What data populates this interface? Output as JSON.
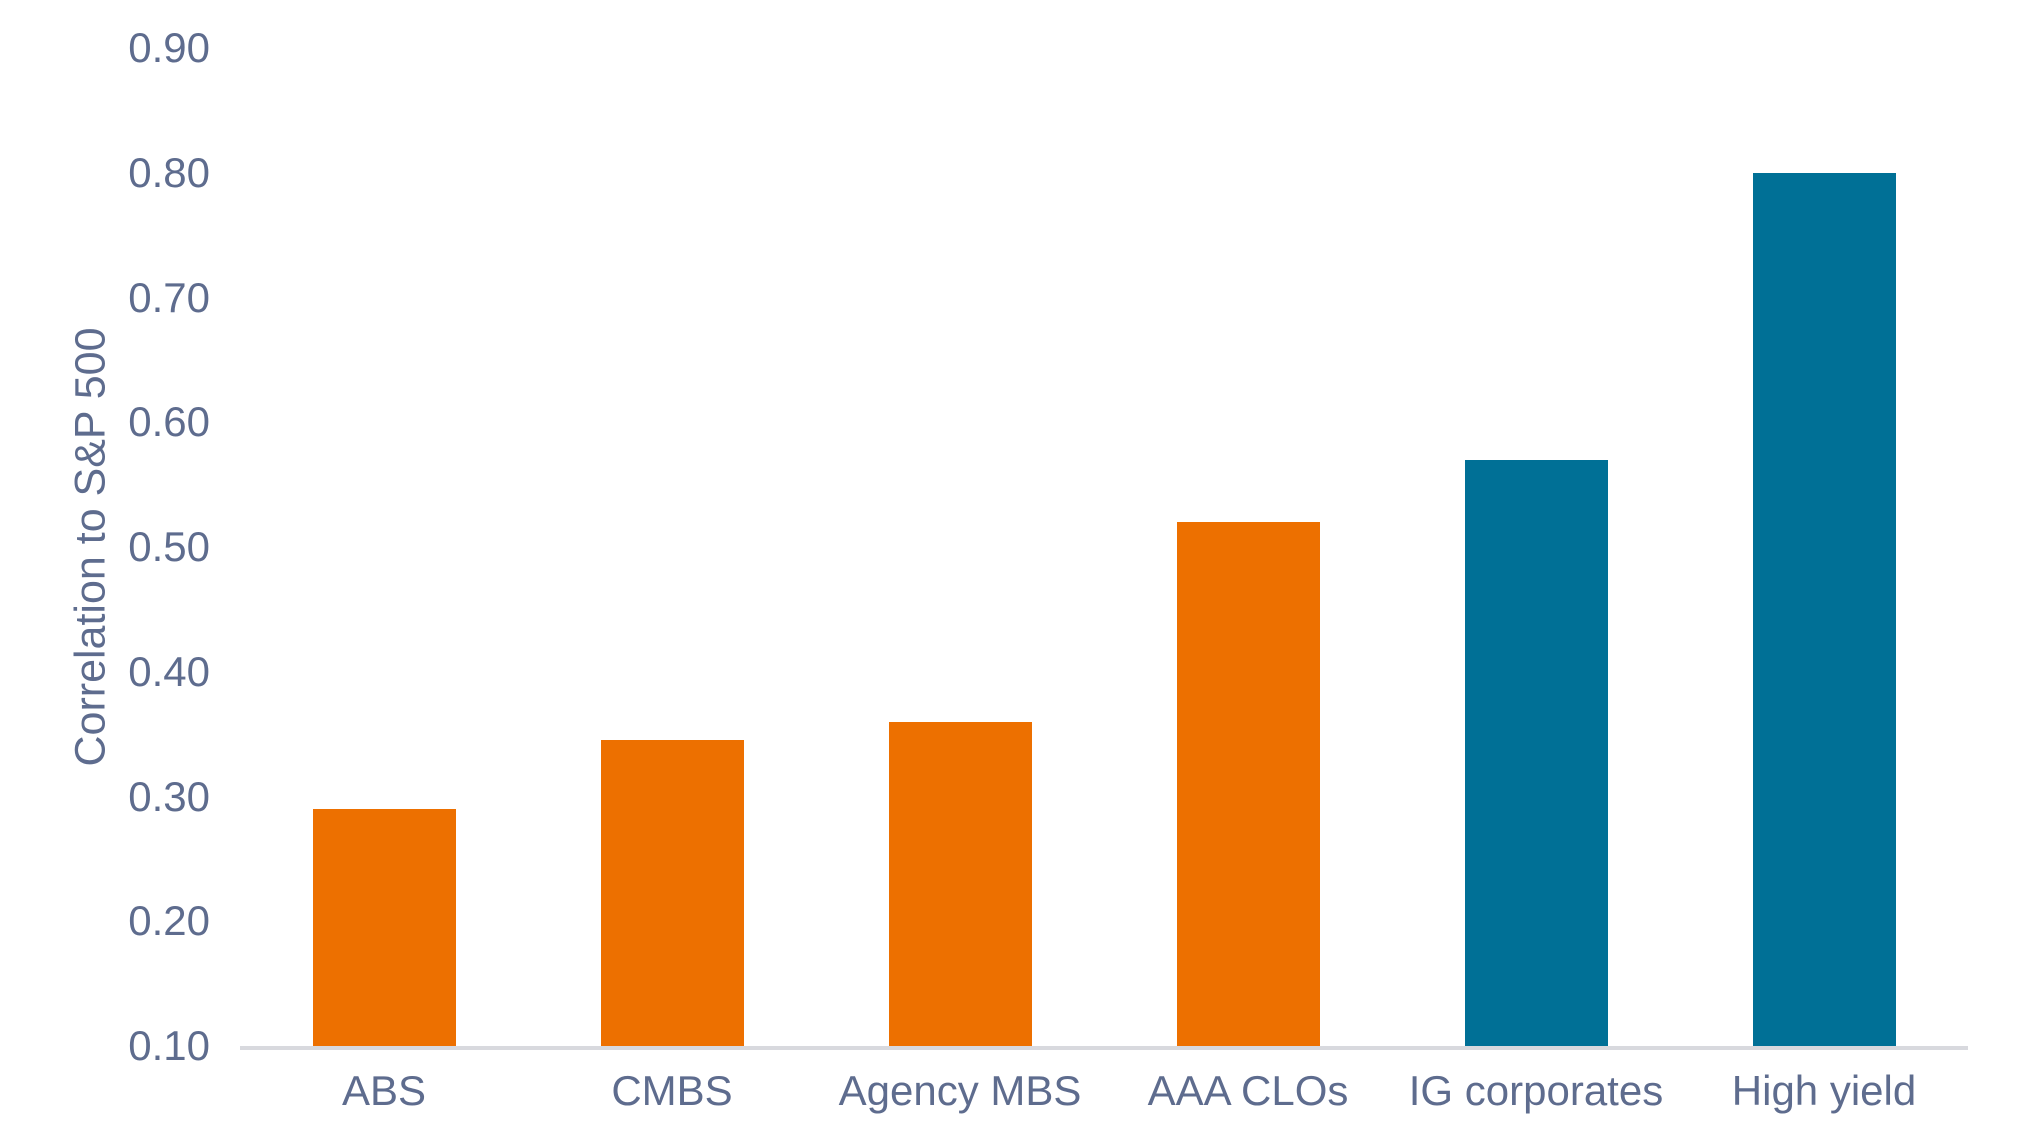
{
  "chart_data": {
    "type": "bar",
    "title": "",
    "xlabel": "",
    "ylabel": "Correlation to S&P 500",
    "categories": [
      "ABS",
      "CMBS",
      "Agency MBS",
      "AAA CLOs",
      "IG corporates",
      "High yield"
    ],
    "values": [
      0.29,
      0.345,
      0.36,
      0.52,
      0.57,
      0.8
    ],
    "bar_colors": [
      "#ED7000",
      "#ED7000",
      "#ED7000",
      "#ED7000",
      "#007096",
      "#007096"
    ],
    "ylim": [
      0.1,
      0.9
    ],
    "yticks": [
      0.9,
      0.8,
      0.7,
      0.6,
      0.5,
      0.4,
      0.3,
      0.2,
      0.1
    ],
    "ytick_labels": [
      "0.90",
      "0.80",
      "0.70",
      "0.60",
      "0.50",
      "0.40",
      "0.30",
      "0.20",
      "0.10"
    ],
    "grid": false,
    "legend": false,
    "background_color": "#ffffff",
    "text_color": "#5E6C8E",
    "axis_line_color": "#D8D9DE"
  }
}
